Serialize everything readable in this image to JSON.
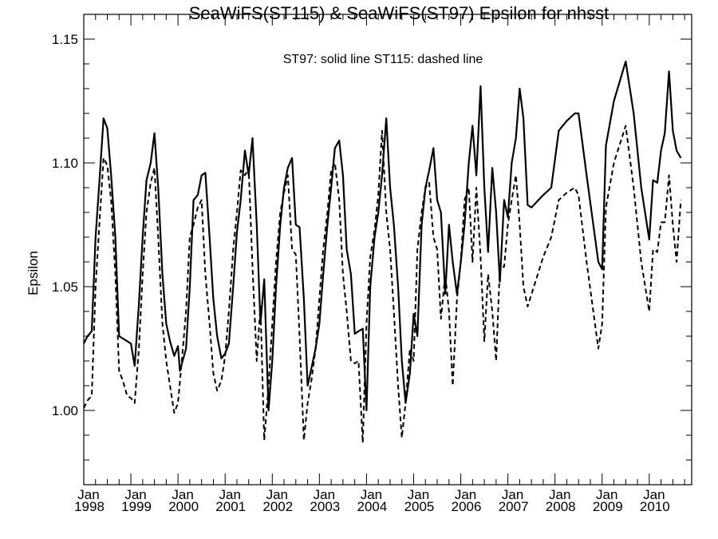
{
  "chart_data": {
    "type": "line",
    "title": "SeaWiFS(ST115) & SeaWiFS(ST97)  Epsilon for nhsst",
    "annotation": "ST97: solid line   ST115: dashed line",
    "ylabel": "Epsilon",
    "xlabel": "",
    "xlim": [
      1998.0,
      2010.9
    ],
    "ylim": [
      0.97,
      1.16
    ],
    "y_ticks": [
      {
        "value": 1.0,
        "label": "1.00"
      },
      {
        "value": 1.05,
        "label": "1.05"
      },
      {
        "value": 1.1,
        "label": "1.10"
      },
      {
        "value": 1.15,
        "label": "1.15"
      }
    ],
    "x_ticks": [
      {
        "value": 1998,
        "month": "Jan",
        "year": "1998"
      },
      {
        "value": 1999,
        "month": "Jan",
        "year": "1999"
      },
      {
        "value": 2000,
        "month": "Jan",
        "year": "2000"
      },
      {
        "value": 2001,
        "month": "Jan",
        "year": "2001"
      },
      {
        "value": 2002,
        "month": "Jan",
        "year": "2002"
      },
      {
        "value": 2003,
        "month": "Jan",
        "year": "2003"
      },
      {
        "value": 2004,
        "month": "Jan",
        "year": "2004"
      },
      {
        "value": 2005,
        "month": "Jan",
        "year": "2005"
      },
      {
        "value": 2006,
        "month": "Jan",
        "year": "2006"
      },
      {
        "value": 2007,
        "month": "Jan",
        "year": "2007"
      },
      {
        "value": 2008,
        "month": "Jan",
        "year": "2008"
      },
      {
        "value": 2009,
        "month": "Jan",
        "year": "2009"
      },
      {
        "value": 2010,
        "month": "Jan",
        "year": "2010"
      }
    ],
    "grid": false,
    "series": [
      {
        "name": "ST97",
        "style": "solid",
        "color": "#000000",
        "points": [
          [
            1998.0,
            1.027
          ],
          [
            1998.08,
            1.03
          ],
          [
            1998.17,
            1.032
          ],
          [
            1998.25,
            1.07
          ],
          [
            1998.33,
            1.092
          ],
          [
            1998.42,
            1.118
          ],
          [
            1998.5,
            1.114
          ],
          [
            1998.58,
            1.095
          ],
          [
            1998.67,
            1.07
          ],
          [
            1998.75,
            1.03
          ],
          [
            1998.92,
            1.028
          ],
          [
            1999.0,
            1.027
          ],
          [
            1999.08,
            1.018
          ],
          [
            1999.17,
            1.043
          ],
          [
            1999.25,
            1.07
          ],
          [
            1999.33,
            1.093
          ],
          [
            1999.42,
            1.1
          ],
          [
            1999.5,
            1.112
          ],
          [
            1999.58,
            1.09
          ],
          [
            1999.67,
            1.055
          ],
          [
            1999.75,
            1.035
          ],
          [
            1999.83,
            1.028
          ],
          [
            1999.92,
            1.022
          ],
          [
            2000.0,
            1.026
          ],
          [
            2000.04,
            1.016
          ],
          [
            2000.17,
            1.025
          ],
          [
            2000.25,
            1.05
          ],
          [
            2000.33,
            1.085
          ],
          [
            2000.42,
            1.087
          ],
          [
            2000.5,
            1.095
          ],
          [
            2000.58,
            1.096
          ],
          [
            2000.67,
            1.07
          ],
          [
            2000.75,
            1.045
          ],
          [
            2000.83,
            1.03
          ],
          [
            2000.92,
            1.021
          ],
          [
            2001.0,
            1.023
          ],
          [
            2001.08,
            1.027
          ],
          [
            2001.17,
            1.05
          ],
          [
            2001.25,
            1.072
          ],
          [
            2001.33,
            1.085
          ],
          [
            2001.42,
            1.105
          ],
          [
            2001.5,
            1.095
          ],
          [
            2001.58,
            1.11
          ],
          [
            2001.67,
            1.075
          ],
          [
            2001.75,
            1.035
          ],
          [
            2001.83,
            1.053
          ],
          [
            2001.92,
            1.0
          ],
          [
            2002.0,
            1.02
          ],
          [
            2002.08,
            1.05
          ],
          [
            2002.17,
            1.075
          ],
          [
            2002.25,
            1.09
          ],
          [
            2002.33,
            1.098
          ],
          [
            2002.42,
            1.102
          ],
          [
            2002.5,
            1.075
          ],
          [
            2002.58,
            1.074
          ],
          [
            2002.67,
            1.045
          ],
          [
            2002.75,
            1.01
          ],
          [
            2002.83,
            1.017
          ],
          [
            2002.92,
            1.025
          ],
          [
            2003.0,
            1.035
          ],
          [
            2003.08,
            1.055
          ],
          [
            2003.17,
            1.075
          ],
          [
            2003.25,
            1.09
          ],
          [
            2003.33,
            1.106
          ],
          [
            2003.42,
            1.109
          ],
          [
            2003.5,
            1.095
          ],
          [
            2003.58,
            1.065
          ],
          [
            2003.67,
            1.055
          ],
          [
            2003.75,
            1.031
          ],
          [
            2003.83,
            1.032
          ],
          [
            2003.92,
            1.033
          ],
          [
            2004.0,
            1.0
          ],
          [
            2004.08,
            1.05
          ],
          [
            2004.17,
            1.07
          ],
          [
            2004.25,
            1.08
          ],
          [
            2004.33,
            1.095
          ],
          [
            2004.42,
            1.118
          ],
          [
            2004.5,
            1.09
          ],
          [
            2004.58,
            1.075
          ],
          [
            2004.67,
            1.05
          ],
          [
            2004.75,
            1.02
          ],
          [
            2004.83,
            1.003
          ],
          [
            2004.92,
            1.015
          ],
          [
            2005.0,
            1.039
          ],
          [
            2005.08,
            1.03
          ],
          [
            2005.17,
            1.075
          ],
          [
            2005.25,
            1.09
          ],
          [
            2005.33,
            1.097
          ],
          [
            2005.42,
            1.106
          ],
          [
            2005.5,
            1.085
          ],
          [
            2005.58,
            1.08
          ],
          [
            2005.67,
            1.047
          ],
          [
            2005.75,
            1.075
          ],
          [
            2005.83,
            1.06
          ],
          [
            2005.92,
            1.047
          ],
          [
            2006.0,
            1.06
          ],
          [
            2006.08,
            1.075
          ],
          [
            2006.17,
            1.1
          ],
          [
            2006.25,
            1.115
          ],
          [
            2006.33,
            1.095
          ],
          [
            2006.42,
            1.131
          ],
          [
            2006.5,
            1.09
          ],
          [
            2006.58,
            1.064
          ],
          [
            2006.67,
            1.098
          ],
          [
            2006.75,
            1.08
          ],
          [
            2006.83,
            1.052
          ],
          [
            2006.92,
            1.085
          ],
          [
            2007.0,
            1.078
          ],
          [
            2007.08,
            1.1
          ],
          [
            2007.17,
            1.11
          ],
          [
            2007.25,
            1.13
          ],
          [
            2007.33,
            1.118
          ],
          [
            2007.42,
            1.083
          ],
          [
            2007.5,
            1.082
          ],
          [
            2007.75,
            1.087
          ],
          [
            2007.92,
            1.09
          ],
          [
            2008.08,
            1.113
          ],
          [
            2008.25,
            1.117
          ],
          [
            2008.42,
            1.12
          ],
          [
            2008.5,
            1.12
          ],
          [
            2008.67,
            1.095
          ],
          [
            2008.92,
            1.06
          ],
          [
            2009.0,
            1.057
          ],
          [
            2009.08,
            1.107
          ],
          [
            2009.25,
            1.125
          ],
          [
            2009.5,
            1.141
          ],
          [
            2009.67,
            1.12
          ],
          [
            2009.83,
            1.09
          ],
          [
            2010.0,
            1.069
          ],
          [
            2010.08,
            1.093
          ],
          [
            2010.17,
            1.092
          ],
          [
            2010.25,
            1.105
          ],
          [
            2010.33,
            1.112
          ],
          [
            2010.42,
            1.137
          ],
          [
            2010.5,
            1.113
          ],
          [
            2010.58,
            1.105
          ],
          [
            2010.67,
            1.102
          ]
        ]
      },
      {
        "name": "ST115",
        "style": "dashed",
        "color": "#000000",
        "points": [
          [
            1998.0,
            1.001
          ],
          [
            1998.08,
            1.004
          ],
          [
            1998.17,
            1.006
          ],
          [
            1998.25,
            1.05
          ],
          [
            1998.33,
            1.075
          ],
          [
            1998.42,
            1.102
          ],
          [
            1998.5,
            1.099
          ],
          [
            1998.58,
            1.085
          ],
          [
            1998.67,
            1.055
          ],
          [
            1998.75,
            1.016
          ],
          [
            1998.83,
            1.012
          ],
          [
            1998.92,
            1.006
          ],
          [
            1999.0,
            1.005
          ],
          [
            1999.08,
            1.003
          ],
          [
            1999.17,
            1.025
          ],
          [
            1999.25,
            1.055
          ],
          [
            1999.33,
            1.08
          ],
          [
            1999.42,
            1.092
          ],
          [
            1999.5,
            1.098
          ],
          [
            1999.58,
            1.07
          ],
          [
            1999.67,
            1.035
          ],
          [
            1999.75,
            1.02
          ],
          [
            1999.83,
            1.01
          ],
          [
            1999.92,
            0.999
          ],
          [
            2000.0,
            1.003
          ],
          [
            2000.08,
            1.02
          ],
          [
            2000.17,
            1.04
          ],
          [
            2000.25,
            1.07
          ],
          [
            2000.33,
            1.075
          ],
          [
            2000.42,
            1.082
          ],
          [
            2000.5,
            1.085
          ],
          [
            2000.58,
            1.055
          ],
          [
            2000.67,
            1.035
          ],
          [
            2000.75,
            1.015
          ],
          [
            2000.83,
            1.008
          ],
          [
            2000.92,
            1.012
          ],
          [
            2001.0,
            1.022
          ],
          [
            2001.08,
            1.04
          ],
          [
            2001.17,
            1.065
          ],
          [
            2001.25,
            1.08
          ],
          [
            2001.33,
            1.097
          ],
          [
            2001.42,
            1.095
          ],
          [
            2001.5,
            1.098
          ],
          [
            2001.58,
            1.058
          ],
          [
            2001.67,
            1.02
          ],
          [
            2001.75,
            1.042
          ],
          [
            2001.83,
            0.988
          ],
          [
            2001.92,
            1.01
          ],
          [
            2002.0,
            1.035
          ],
          [
            2002.08,
            1.06
          ],
          [
            2002.17,
            1.08
          ],
          [
            2002.25,
            1.088
          ],
          [
            2002.33,
            1.095
          ],
          [
            2002.42,
            1.065
          ],
          [
            2002.5,
            1.063
          ],
          [
            2002.58,
            1.03
          ],
          [
            2002.67,
            0.988
          ],
          [
            2002.75,
            1.003
          ],
          [
            2002.83,
            1.012
          ],
          [
            2002.92,
            1.025
          ],
          [
            2003.0,
            1.045
          ],
          [
            2003.08,
            1.065
          ],
          [
            2003.17,
            1.08
          ],
          [
            2003.25,
            1.097
          ],
          [
            2003.33,
            1.1
          ],
          [
            2003.42,
            1.085
          ],
          [
            2003.5,
            1.055
          ],
          [
            2003.58,
            1.04
          ],
          [
            2003.67,
            1.02
          ],
          [
            2003.75,
            1.019
          ],
          [
            2003.83,
            1.02
          ],
          [
            2003.92,
            0.987
          ],
          [
            2004.0,
            1.035
          ],
          [
            2004.08,
            1.062
          ],
          [
            2004.17,
            1.073
          ],
          [
            2004.25,
            1.087
          ],
          [
            2004.33,
            1.113
          ],
          [
            2004.42,
            1.08
          ],
          [
            2004.5,
            1.065
          ],
          [
            2004.58,
            1.04
          ],
          [
            2004.67,
            1.01
          ],
          [
            2004.75,
            0.989
          ],
          [
            2004.83,
            1.003
          ],
          [
            2004.92,
            1.025
          ],
          [
            2005.0,
            1.02
          ],
          [
            2005.08,
            1.065
          ],
          [
            2005.17,
            1.08
          ],
          [
            2005.25,
            1.09
          ],
          [
            2005.33,
            1.092
          ],
          [
            2005.42,
            1.07
          ],
          [
            2005.5,
            1.065
          ],
          [
            2005.58,
            1.037
          ],
          [
            2005.67,
            1.055
          ],
          [
            2005.75,
            1.04
          ],
          [
            2005.83,
            1.01
          ],
          [
            2005.92,
            1.045
          ],
          [
            2006.0,
            1.06
          ],
          [
            2006.08,
            1.085
          ],
          [
            2006.17,
            1.09
          ],
          [
            2006.25,
            1.06
          ],
          [
            2006.33,
            1.09
          ],
          [
            2006.42,
            1.062
          ],
          [
            2006.5,
            1.028
          ],
          [
            2006.58,
            1.055
          ],
          [
            2006.67,
            1.04
          ],
          [
            2006.75,
            1.02
          ],
          [
            2006.83,
            1.058
          ],
          [
            2006.92,
            1.058
          ],
          [
            2007.0,
            1.075
          ],
          [
            2007.08,
            1.085
          ],
          [
            2007.17,
            1.095
          ],
          [
            2007.25,
            1.075
          ],
          [
            2007.33,
            1.05
          ],
          [
            2007.42,
            1.042
          ],
          [
            2007.75,
            1.062
          ],
          [
            2007.92,
            1.07
          ],
          [
            2008.08,
            1.085
          ],
          [
            2008.25,
            1.088
          ],
          [
            2008.42,
            1.09
          ],
          [
            2008.5,
            1.087
          ],
          [
            2008.67,
            1.06
          ],
          [
            2008.92,
            1.025
          ],
          [
            2009.0,
            1.035
          ],
          [
            2009.08,
            1.082
          ],
          [
            2009.25,
            1.1
          ],
          [
            2009.5,
            1.115
          ],
          [
            2009.67,
            1.09
          ],
          [
            2009.83,
            1.06
          ],
          [
            2010.0,
            1.04
          ],
          [
            2010.08,
            1.065
          ],
          [
            2010.17,
            1.064
          ],
          [
            2010.25,
            1.076
          ],
          [
            2010.33,
            1.076
          ],
          [
            2010.42,
            1.095
          ],
          [
            2010.5,
            1.075
          ],
          [
            2010.58,
            1.06
          ],
          [
            2010.67,
            1.085
          ]
        ]
      }
    ]
  }
}
